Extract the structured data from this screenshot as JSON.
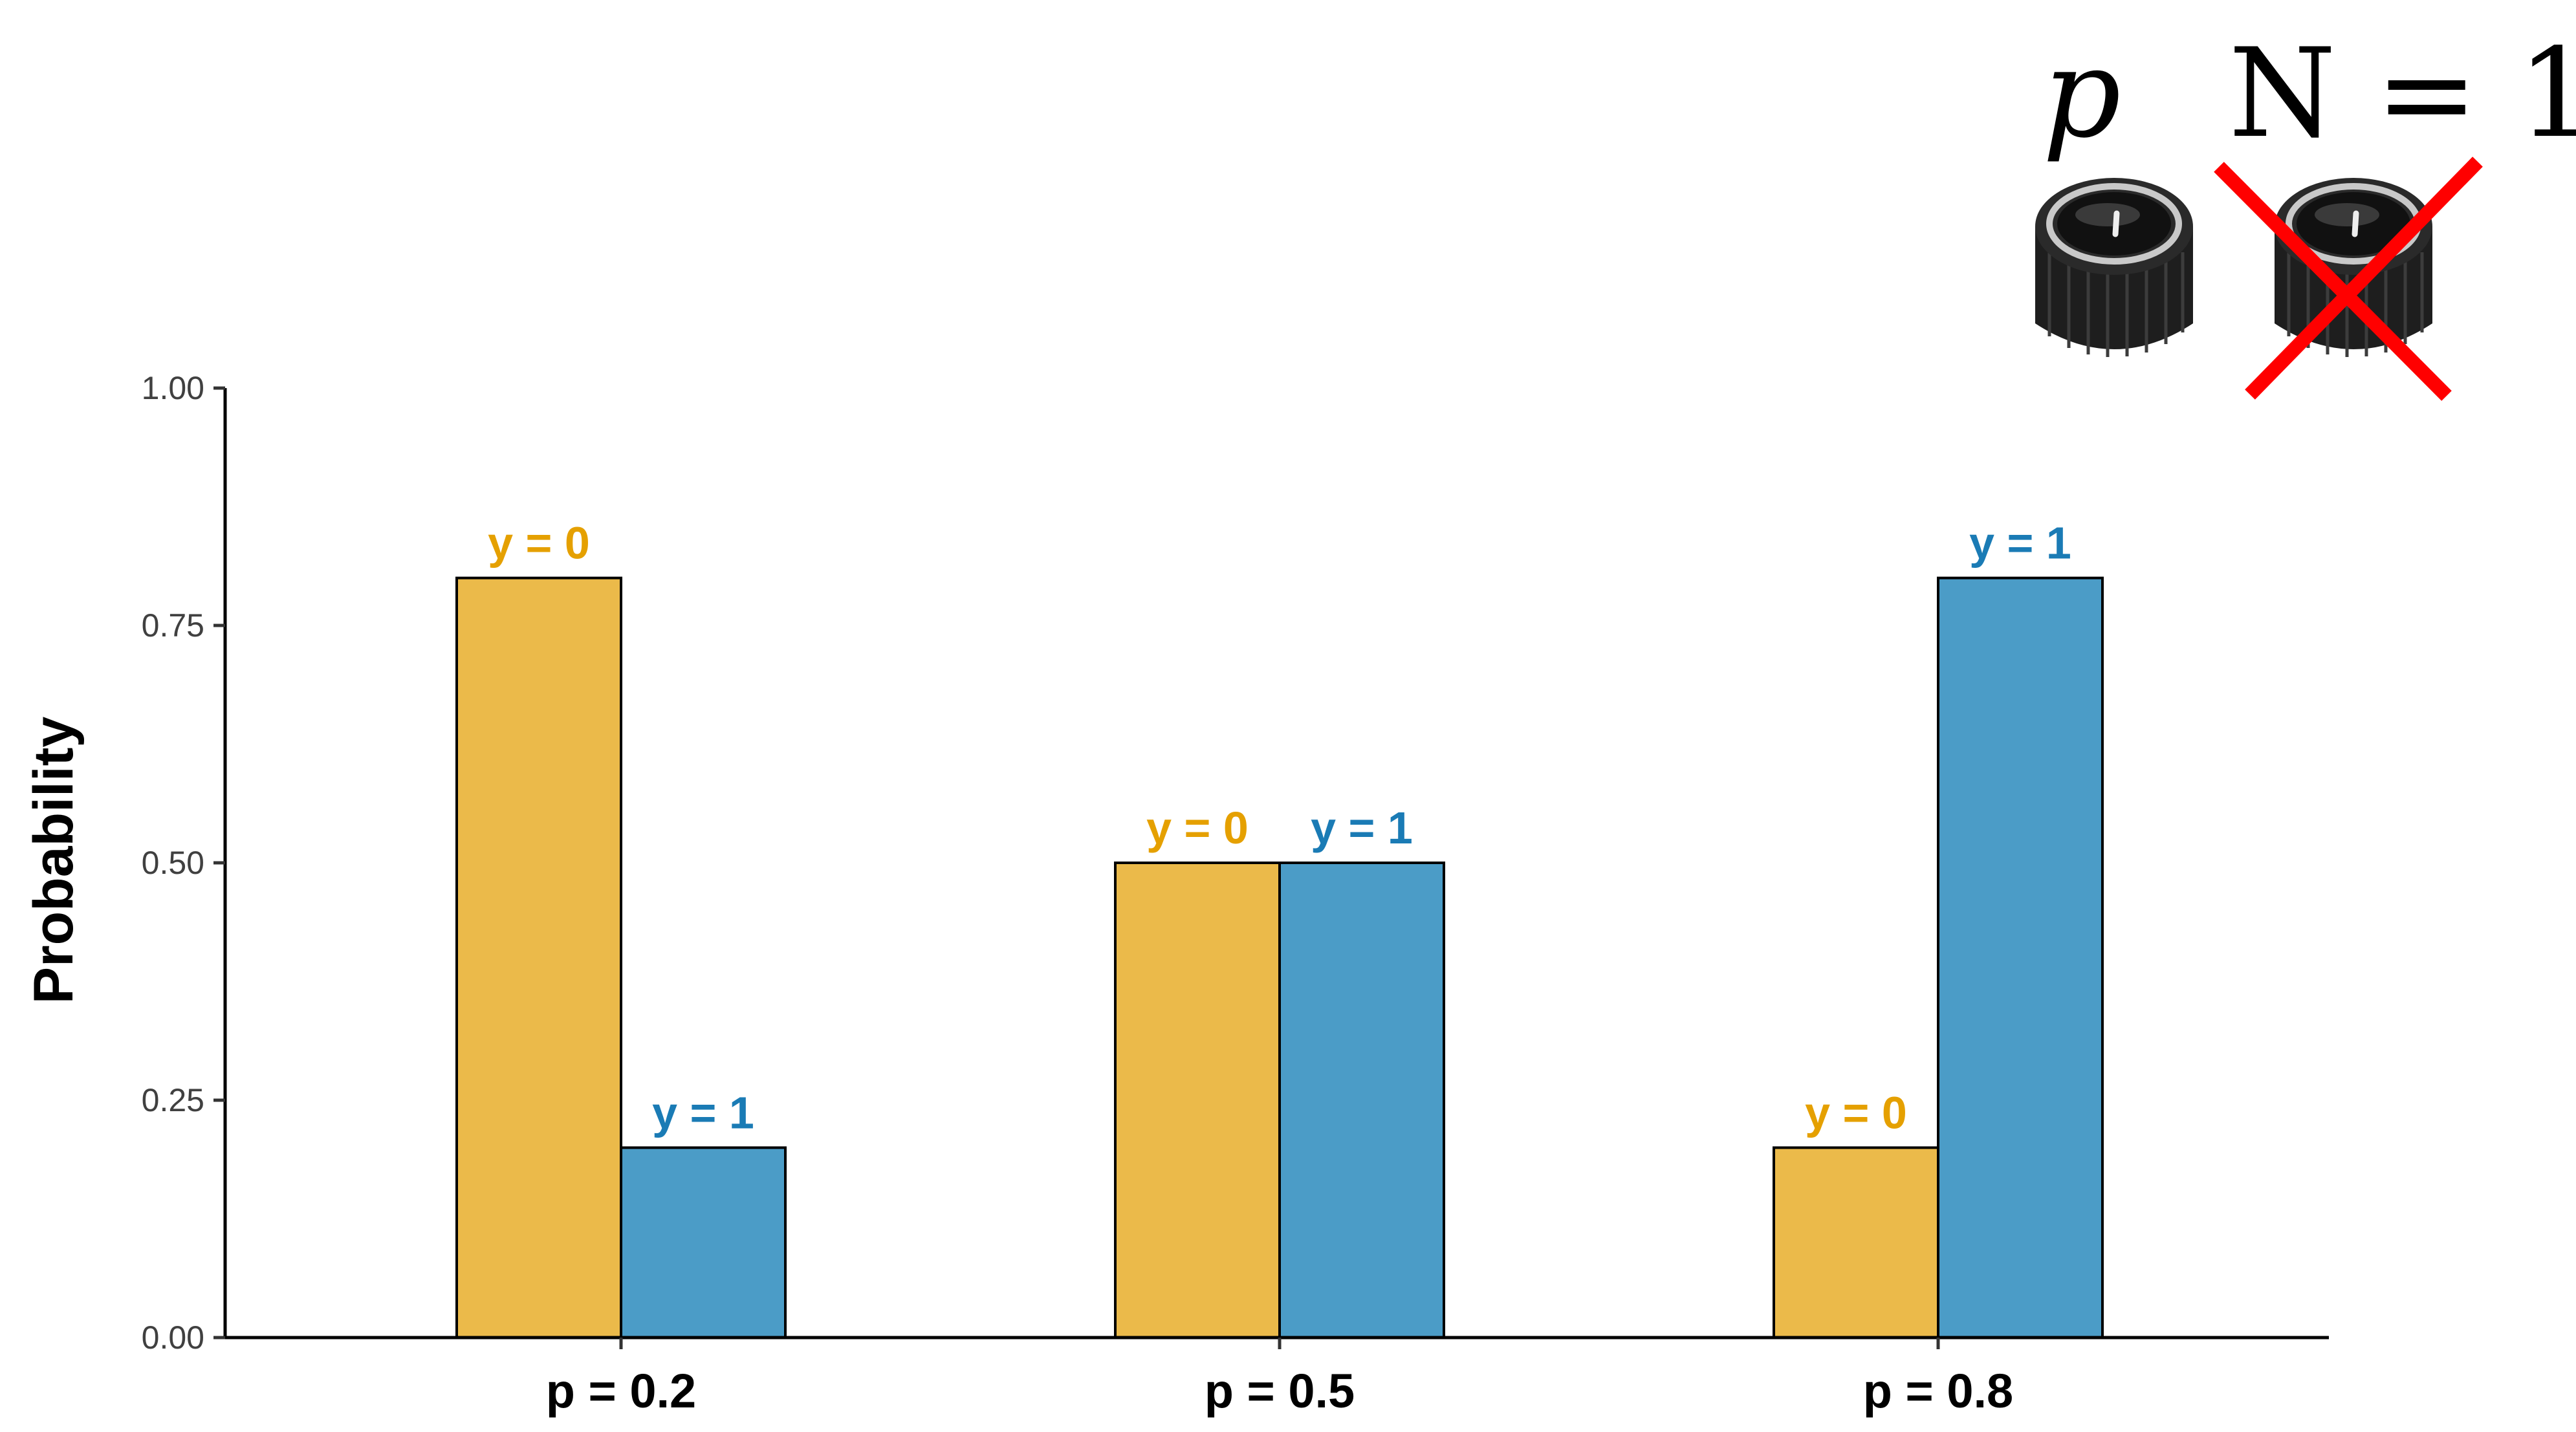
{
  "chart_data": {
    "type": "bar",
    "categories": [
      "p = 0.2",
      "p = 0.5",
      "p = 0.8"
    ],
    "series": [
      {
        "name": "y = 0",
        "values": [
          0.8,
          0.5,
          0.2
        ]
      },
      {
        "name": "y = 1",
        "values": [
          0.2,
          0.5,
          0.8
        ]
      }
    ],
    "bar_labels": [
      "y = 0",
      "y = 1"
    ],
    "series_colors": [
      "#ebba4a",
      "#4b9cc7"
    ],
    "label_colors": [
      "#e5a000",
      "#1a7bb5"
    ],
    "ylabel": "Probability",
    "xlabel": "",
    "ylim": [
      0,
      1
    ],
    "yticks": [
      0,
      0.25,
      0.5,
      0.75,
      1
    ],
    "ytick_labels": [
      "0.00",
      "0.25",
      "0.50",
      "0.75",
      "1.00"
    ],
    "grid": false,
    "legend": "none"
  },
  "annotation": {
    "knob_label_p": "p",
    "knob_label_n": "N = 1",
    "icons": [
      "knob-icon",
      "knob-icon",
      "red-x-icon"
    ],
    "cross_color": "#ff0000"
  }
}
